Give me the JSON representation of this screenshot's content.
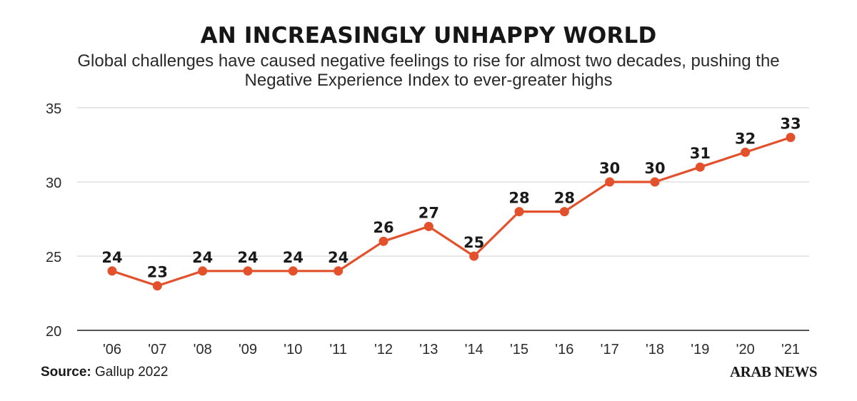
{
  "chart_data": {
    "type": "line",
    "title": "AN INCREASINGLY UNHAPPY WORLD",
    "subtitle": "Global challenges have caused negative feelings to rise for almost two decades, pushing the Negative Experience Index to ever-greater highs",
    "categories": [
      "'06",
      "'07",
      "'08",
      "'09",
      "'10",
      "'11",
      "'12",
      "'13",
      "'14",
      "'15",
      "'16",
      "'17",
      "'18",
      "'19",
      "'20",
      "'21"
    ],
    "series": [
      {
        "values": [
          24,
          23,
          24,
          24,
          24,
          24,
          26,
          27,
          25,
          28,
          28,
          30,
          30,
          31,
          32,
          33
        ]
      }
    ],
    "data_labels": [
      "24",
      "23",
      "24",
      "24",
      "24",
      "24",
      "26",
      "27",
      "25",
      "28",
      "28",
      "30",
      "30",
      "31",
      "32",
      "33"
    ],
    "y_ticks": [
      "20",
      "25",
      "30",
      "35"
    ],
    "y_tick_values": [
      20,
      25,
      30,
      35
    ],
    "ylim": [
      20,
      35
    ],
    "grid": true,
    "xlabel": "",
    "ylabel": "",
    "line_color": "#e2512c",
    "grid_color": "#cfcfcf",
    "axis_color": "#1a1a1a"
  },
  "footer": {
    "source_label": "Source:",
    "source_text": "Gallup 2022",
    "brand": "ARAB NEWS"
  }
}
